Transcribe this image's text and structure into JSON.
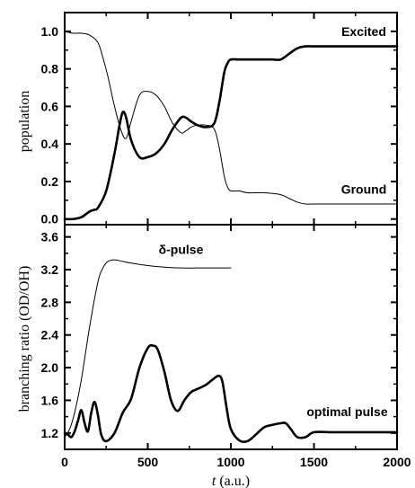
{
  "chart_data": [
    {
      "type": "line",
      "ylabel": "population",
      "xlim": [
        0,
        2000
      ],
      "ylim": [
        -0.03,
        1.1
      ],
      "yticks": [
        0.0,
        0.2,
        0.4,
        0.6,
        0.8,
        1.0
      ],
      "ytick_labels": [
        "0.0",
        "0.2",
        "0.4",
        "0.6",
        "0.8",
        "1.0"
      ],
      "annotations": [
        {
          "text": "Excited",
          "series": "excited",
          "at": [
            1800,
            1.0
          ]
        },
        {
          "text": "Ground",
          "series": "ground",
          "at": [
            1800,
            0.16
          ]
        }
      ],
      "series": [
        {
          "name": "Excited",
          "key": "excited",
          "stroke": "thick",
          "x": [
            0,
            50,
            100,
            150,
            180,
            200,
            250,
            300,
            330,
            350,
            370,
            400,
            450,
            500,
            550,
            600,
            650,
            700,
            730,
            760,
            800,
            850,
            900,
            930,
            960,
            980,
            1000,
            1050,
            1100,
            1150,
            1200,
            1250,
            1300,
            1350,
            1400,
            1450,
            1500,
            1600,
            1700,
            1800,
            1900,
            2000
          ],
          "y": [
            0.0,
            0.0,
            0.01,
            0.04,
            0.05,
            0.06,
            0.15,
            0.35,
            0.5,
            0.57,
            0.54,
            0.42,
            0.33,
            0.33,
            0.35,
            0.4,
            0.48,
            0.54,
            0.54,
            0.52,
            0.5,
            0.49,
            0.51,
            0.62,
            0.78,
            0.83,
            0.85,
            0.85,
            0.85,
            0.85,
            0.85,
            0.85,
            0.85,
            0.88,
            0.91,
            0.92,
            0.92,
            0.92,
            0.92,
            0.92,
            0.92,
            0.92
          ]
        },
        {
          "name": "Ground",
          "key": "ground",
          "stroke": "thin",
          "x": [
            0,
            50,
            100,
            150,
            200,
            230,
            260,
            300,
            340,
            370,
            400,
            450,
            500,
            550,
            600,
            650,
            700,
            730,
            760,
            800,
            850,
            900,
            930,
            960,
            980,
            1000,
            1050,
            1100,
            1200,
            1300,
            1350,
            1400,
            1450,
            1500,
            1600,
            1700,
            1800,
            1900,
            2000
          ],
          "y": [
            1.0,
            0.99,
            0.99,
            0.98,
            0.94,
            0.86,
            0.76,
            0.6,
            0.47,
            0.43,
            0.52,
            0.66,
            0.68,
            0.66,
            0.6,
            0.51,
            0.46,
            0.47,
            0.49,
            0.5,
            0.5,
            0.48,
            0.38,
            0.23,
            0.17,
            0.15,
            0.15,
            0.14,
            0.14,
            0.13,
            0.11,
            0.09,
            0.08,
            0.08,
            0.08,
            0.08,
            0.08,
            0.08,
            0.08
          ]
        }
      ]
    },
    {
      "type": "line",
      "xlabel": "t (a.u.)",
      "ylabel": "branching ratio (OD/OH)",
      "xlim": [
        0,
        2000
      ],
      "ylim": [
        1.0,
        3.75
      ],
      "xticks": [
        0,
        500,
        1000,
        1500,
        2000
      ],
      "xtick_labels": [
        "0",
        "500",
        "1000",
        "1500",
        "2000"
      ],
      "yticks": [
        1.2,
        1.6,
        2.0,
        2.4,
        2.8,
        3.2,
        3.6
      ],
      "ytick_labels": [
        "1.2",
        "1.6",
        "2.0",
        "2.4",
        "2.8",
        "3.2",
        "3.6"
      ],
      "annotations": [
        {
          "text": "δ-pulse",
          "series": "delta",
          "at": [
            700,
            3.45
          ]
        },
        {
          "text": "optimal pulse",
          "series": "optimal",
          "at": [
            1700,
            1.46
          ]
        }
      ],
      "series": [
        {
          "name": "δ-pulse",
          "key": "delta",
          "stroke": "thin",
          "x": [
            0,
            30,
            60,
            100,
            150,
            200,
            230,
            260,
            300,
            350,
            400,
            500,
            600,
            700,
            800,
            900,
            1000
          ],
          "y": [
            1.15,
            1.25,
            1.45,
            1.85,
            2.5,
            3.05,
            3.22,
            3.3,
            3.32,
            3.3,
            3.28,
            3.25,
            3.23,
            3.22,
            3.22,
            3.22,
            3.22
          ]
        },
        {
          "name": "optimal pulse",
          "key": "optimal",
          "stroke": "thick",
          "x": [
            0,
            20,
            40,
            60,
            80,
            100,
            120,
            140,
            160,
            180,
            200,
            220,
            250,
            300,
            350,
            400,
            450,
            500,
            530,
            560,
            600,
            640,
            680,
            720,
            760,
            800,
            850,
            900,
            930,
            950,
            975,
            1000,
            1050,
            1100,
            1150,
            1200,
            1250,
            1300,
            1330,
            1360,
            1400,
            1450,
            1500,
            1600,
            1700,
            1800,
            1900,
            2000
          ],
          "y": [
            1.2,
            1.18,
            1.15,
            1.22,
            1.35,
            1.48,
            1.32,
            1.22,
            1.45,
            1.58,
            1.42,
            1.18,
            1.1,
            1.2,
            1.45,
            1.62,
            2.0,
            2.24,
            2.27,
            2.22,
            1.95,
            1.6,
            1.47,
            1.6,
            1.7,
            1.74,
            1.79,
            1.87,
            1.9,
            1.82,
            1.5,
            1.25,
            1.11,
            1.1,
            1.18,
            1.27,
            1.3,
            1.32,
            1.32,
            1.25,
            1.15,
            1.15,
            1.21,
            1.21,
            1.21,
            1.21,
            1.21,
            1.21
          ]
        }
      ]
    }
  ]
}
